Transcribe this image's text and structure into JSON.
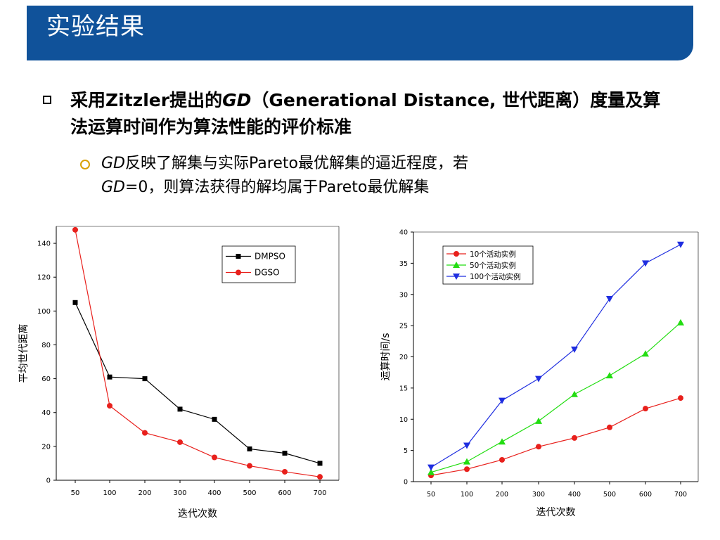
{
  "slide": {
    "title": "实验结果",
    "bullet1": {
      "prefix": "采用",
      "zitzler": "Zitzler",
      "mid": "提出的",
      "gd": "GD",
      "paren": "（Generational Distance, 世代距离）度量及算法运算时间作为算法性能的评价标准"
    },
    "bullet2": {
      "line1_gd": "GD",
      "line1_rest": "反映了解集与实际Pareto最优解集的逼近程度，若",
      "line2_gd": "GD",
      "line2_rest": "=0，则算法获得的解均属于Pareto最优解集"
    }
  },
  "chart_data": [
    {
      "type": "line",
      "xlabel": "迭代次数",
      "ylabel": "平均世代距离",
      "x": [
        50,
        100,
        200,
        300,
        400,
        500,
        600,
        700
      ],
      "x_ticks": [
        "50",
        "100",
        "200",
        "300",
        "400",
        "500",
        "600",
        "700"
      ],
      "ylim": [
        0,
        150
      ],
      "y_ticks": [
        "0",
        "20",
        "40",
        "60",
        "80",
        "100",
        "120",
        "140"
      ],
      "legend_position": "top-right",
      "series": [
        {
          "name": "DMPSO",
          "color": "#000000",
          "marker": "square",
          "values": [
            105,
            61,
            60,
            42,
            36,
            18.5,
            16,
            10
          ]
        },
        {
          "name": "DGSO",
          "color": "#e8201c",
          "marker": "circle",
          "values": [
            148,
            44,
            28,
            22.5,
            13.5,
            8.5,
            5,
            2
          ]
        }
      ]
    },
    {
      "type": "line",
      "xlabel": "迭代次数",
      "ylabel": "运算时间/s",
      "x": [
        50,
        100,
        200,
        300,
        400,
        500,
        600,
        700
      ],
      "x_ticks": [
        "50",
        "100",
        "200",
        "300",
        "400",
        "500",
        "600",
        "700"
      ],
      "ylim": [
        0,
        40
      ],
      "y_ticks": [
        "0",
        "5",
        "10",
        "15",
        "20",
        "25",
        "30",
        "35",
        "40"
      ],
      "legend_position": "top-left",
      "series": [
        {
          "name": "10个活动实例",
          "color": "#e8201c",
          "marker": "circle",
          "values": [
            1,
            2,
            3.5,
            5.6,
            7,
            8.7,
            11.7,
            13.4
          ]
        },
        {
          "name": "50个活动实例",
          "color": "#22dd11",
          "marker": "triangle-up",
          "values": [
            1.5,
            3.2,
            6.4,
            9.7,
            14,
            17,
            20.5,
            25.5
          ]
        },
        {
          "name": "100个活动实例",
          "color": "#1f2ee0",
          "marker": "triangle-down",
          "values": [
            2.3,
            5.8,
            13,
            16.5,
            21.2,
            29.3,
            35,
            38
          ]
        }
      ]
    }
  ]
}
